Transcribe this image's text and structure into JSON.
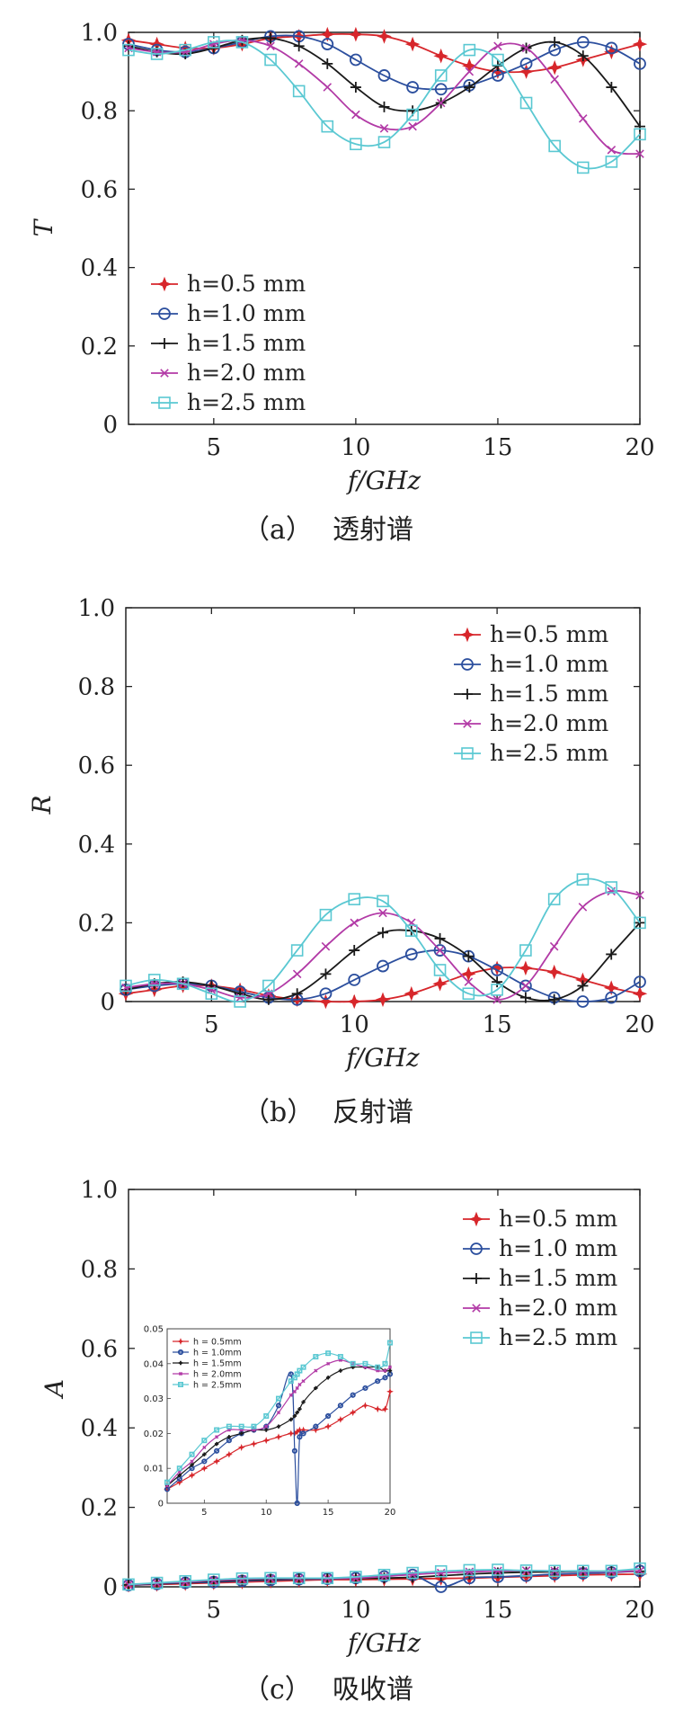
{
  "panels": [
    {
      "id": "a",
      "caption_letter": "（a）",
      "caption_text": "透射谱",
      "legend_position": "bottom-left"
    },
    {
      "id": "b",
      "caption_letter": "（b）",
      "caption_text": "反射谱",
      "legend_position": "top-right"
    },
    {
      "id": "c",
      "caption_letter": "（c）",
      "caption_text": "吸收谱",
      "legend_position": "top-right"
    }
  ],
  "colors": {
    "h05": "#d7262b",
    "h10": "#2c4f9e",
    "h15": "#1a1a1a",
    "h20": "#b23aa6",
    "h25": "#5ac8d2"
  },
  "chart_data": [
    {
      "type": "line",
      "ylabel": "T",
      "xlabel": "f/GHz",
      "xlim": [
        2,
        20
      ],
      "ylim": [
        0,
        1.0
      ],
      "xticks": [
        "5",
        "10",
        "15",
        "20"
      ],
      "yticks": [
        "0",
        "0.2",
        "0.4",
        "0.6",
        "0.8",
        "1.0"
      ],
      "x": [
        2,
        3,
        4,
        5,
        6,
        7,
        8,
        9,
        10,
        11,
        12,
        13,
        14,
        15,
        16,
        17,
        18,
        19,
        20
      ],
      "series": [
        {
          "name": "h=0.5 mm",
          "marker": "star",
          "color_key": "h05",
          "values": [
            0.98,
            0.97,
            0.96,
            0.96,
            0.97,
            0.985,
            0.99,
            0.995,
            0.995,
            0.99,
            0.97,
            0.94,
            0.915,
            0.9,
            0.9,
            0.91,
            0.93,
            0.95,
            0.97
          ]
        },
        {
          "name": "h=1.0 mm",
          "marker": "circle",
          "color_key": "h10",
          "values": [
            0.97,
            0.955,
            0.95,
            0.96,
            0.975,
            0.99,
            0.99,
            0.97,
            0.93,
            0.89,
            0.86,
            0.855,
            0.865,
            0.89,
            0.92,
            0.955,
            0.975,
            0.96,
            0.92
          ]
        },
        {
          "name": "h=1.5 mm",
          "marker": "plus",
          "color_key": "h15",
          "values": [
            0.965,
            0.95,
            0.945,
            0.96,
            0.98,
            0.985,
            0.965,
            0.92,
            0.86,
            0.81,
            0.8,
            0.82,
            0.86,
            0.915,
            0.96,
            0.975,
            0.94,
            0.86,
            0.76
          ]
        },
        {
          "name": "h=2.0 mm",
          "marker": "x",
          "color_key": "h20",
          "values": [
            0.96,
            0.95,
            0.95,
            0.97,
            0.98,
            0.965,
            0.92,
            0.86,
            0.79,
            0.755,
            0.76,
            0.82,
            0.9,
            0.965,
            0.96,
            0.88,
            0.78,
            0.7,
            0.69
          ]
        },
        {
          "name": "h=2.5 mm",
          "marker": "square",
          "color_key": "h25",
          "values": [
            0.955,
            0.945,
            0.955,
            0.975,
            0.975,
            0.93,
            0.85,
            0.76,
            0.715,
            0.72,
            0.79,
            0.89,
            0.955,
            0.93,
            0.82,
            0.71,
            0.655,
            0.67,
            0.74
          ]
        }
      ]
    },
    {
      "type": "line",
      "ylabel": "R",
      "xlabel": "f/GHz",
      "xlim": [
        2,
        20
      ],
      "ylim": [
        0,
        1.0
      ],
      "xticks": [
        "5",
        "10",
        "15",
        "20"
      ],
      "yticks": [
        "0",
        "0.2",
        "0.4",
        "0.6",
        "0.8",
        "1.0"
      ],
      "x": [
        2,
        3,
        4,
        5,
        6,
        7,
        8,
        9,
        10,
        11,
        12,
        13,
        14,
        15,
        16,
        17,
        18,
        19,
        20
      ],
      "series": [
        {
          "name": "h=0.5 mm",
          "marker": "star",
          "color_key": "h05",
          "values": [
            0.02,
            0.03,
            0.04,
            0.04,
            0.03,
            0.015,
            0.005,
            0.0,
            0.0,
            0.005,
            0.02,
            0.045,
            0.07,
            0.085,
            0.085,
            0.075,
            0.055,
            0.035,
            0.02
          ]
        },
        {
          "name": "h=1.0 mm",
          "marker": "circle",
          "color_key": "h10",
          "values": [
            0.03,
            0.04,
            0.045,
            0.04,
            0.025,
            0.01,
            0.005,
            0.02,
            0.055,
            0.09,
            0.12,
            0.13,
            0.115,
            0.08,
            0.04,
            0.01,
            0.0,
            0.01,
            0.05
          ]
        },
        {
          "name": "h=1.5 mm",
          "marker": "plus",
          "color_key": "h15",
          "values": [
            0.03,
            0.045,
            0.05,
            0.04,
            0.02,
            0.005,
            0.02,
            0.07,
            0.13,
            0.175,
            0.18,
            0.16,
            0.115,
            0.05,
            0.01,
            0.005,
            0.04,
            0.12,
            0.2
          ]
        },
        {
          "name": "h=2.0 mm",
          "marker": "x",
          "color_key": "h20",
          "values": [
            0.035,
            0.045,
            0.045,
            0.03,
            0.01,
            0.02,
            0.07,
            0.14,
            0.2,
            0.225,
            0.2,
            0.13,
            0.05,
            0.005,
            0.04,
            0.14,
            0.24,
            0.28,
            0.27
          ]
        },
        {
          "name": "h=2.5 mm",
          "marker": "square",
          "color_key": "h25",
          "values": [
            0.04,
            0.055,
            0.045,
            0.02,
            0.0,
            0.04,
            0.13,
            0.22,
            0.26,
            0.255,
            0.18,
            0.08,
            0.02,
            0.03,
            0.13,
            0.26,
            0.31,
            0.29,
            0.2
          ]
        }
      ]
    },
    {
      "type": "line",
      "ylabel": "A",
      "xlabel": "f/GHz",
      "xlim": [
        2,
        20
      ],
      "ylim": [
        0,
        1.0
      ],
      "xticks": [
        "5",
        "10",
        "15",
        "20"
      ],
      "yticks": [
        "0",
        "0.2",
        "0.4",
        "0.6",
        "0.8",
        "1.0"
      ],
      "x": [
        2,
        3,
        4,
        5,
        6,
        7,
        8,
        9,
        10,
        11,
        12,
        13,
        14,
        15,
        16,
        17,
        18,
        19,
        20
      ],
      "series": [
        {
          "name": "h=0.5 mm",
          "marker": "star",
          "color_key": "h05",
          "values": [
            0.004,
            0.006,
            0.008,
            0.01,
            0.012,
            0.014,
            0.016,
            0.018,
            0.018,
            0.019,
            0.02,
            0.021,
            0.022,
            0.024,
            0.026,
            0.028,
            0.03,
            0.031,
            0.032
          ]
        },
        {
          "name": "h=1.0 mm",
          "marker": "circle",
          "color_key": "h10",
          "values": [
            0.004,
            0.007,
            0.01,
            0.012,
            0.015,
            0.017,
            0.019,
            0.02,
            0.022,
            0.026,
            0.03,
            0.0,
            0.022,
            0.025,
            0.028,
            0.032,
            0.034,
            0.036,
            0.04
          ]
        },
        {
          "name": "h=1.5 mm",
          "marker": "plus",
          "color_key": "h15",
          "values": [
            0.005,
            0.008,
            0.011,
            0.014,
            0.017,
            0.019,
            0.02,
            0.021,
            0.021,
            0.022,
            0.024,
            0.028,
            0.032,
            0.035,
            0.037,
            0.038,
            0.039,
            0.039,
            0.039
          ]
        },
        {
          "name": "h=2.0 mm",
          "marker": "x",
          "color_key": "h20",
          "values": [
            0.005,
            0.009,
            0.012,
            0.016,
            0.019,
            0.021,
            0.021,
            0.021,
            0.022,
            0.026,
            0.031,
            0.035,
            0.038,
            0.04,
            0.041,
            0.04,
            0.039,
            0.038,
            0.04
          ]
        },
        {
          "name": "h=2.5 mm",
          "marker": "square",
          "color_key": "h25",
          "values": [
            0.006,
            0.01,
            0.014,
            0.018,
            0.021,
            0.022,
            0.022,
            0.022,
            0.025,
            0.03,
            0.035,
            0.039,
            0.042,
            0.043,
            0.041,
            0.04,
            0.04,
            0.04,
            0.046
          ]
        }
      ],
      "inset": {
        "xlim": [
          2,
          20
        ],
        "ylim": [
          0,
          0.05
        ],
        "xticks": [
          "5",
          "10",
          "15",
          "20"
        ],
        "yticks": [
          "0",
          "0.01",
          "0.02",
          "0.03",
          "0.04",
          "0.05"
        ],
        "x": [
          2,
          3,
          4,
          5,
          6,
          7,
          8,
          9,
          10,
          11,
          12,
          12.3,
          12.5,
          12.7,
          13,
          14,
          15,
          16,
          17,
          18,
          19,
          19.6,
          20
        ],
        "legend": [
          "h = 0.5mm",
          "h = 1.0mm",
          "h = 1.5mm",
          "h = 2.0mm",
          "h = 2.5mm"
        ],
        "series": [
          {
            "name": "h = 0.5mm",
            "color_key": "h05",
            "values": [
              0.004,
              0.006,
              0.008,
              0.01,
              0.012,
              0.014,
              0.016,
              0.017,
              0.018,
              0.019,
              0.02,
              0.02,
              0.0205,
              0.021,
              0.021,
              0.021,
              0.022,
              0.024,
              0.026,
              0.028,
              0.027,
              0.027,
              0.032
            ]
          },
          {
            "name": "h = 1.0mm",
            "color_key": "h10",
            "values": [
              0.004,
              0.007,
              0.01,
              0.012,
              0.015,
              0.018,
              0.02,
              0.021,
              0.022,
              0.028,
              0.037,
              0.015,
              0.0,
              0.019,
              0.02,
              0.022,
              0.025,
              0.028,
              0.031,
              0.033,
              0.035,
              0.036,
              0.037
            ]
          },
          {
            "name": "h = 1.5mm",
            "color_key": "h15",
            "values": [
              0.005,
              0.008,
              0.011,
              0.014,
              0.017,
              0.019,
              0.02,
              0.021,
              0.021,
              0.022,
              0.024,
              0.025,
              0.026,
              0.027,
              0.029,
              0.033,
              0.036,
              0.038,
              0.039,
              0.039,
              0.039,
              0.038,
              0.038
            ]
          },
          {
            "name": "h = 2.0mm",
            "color_key": "h20",
            "values": [
              0.005,
              0.009,
              0.012,
              0.016,
              0.019,
              0.021,
              0.021,
              0.021,
              0.022,
              0.026,
              0.031,
              0.032,
              0.033,
              0.034,
              0.035,
              0.038,
              0.04,
              0.041,
              0.04,
              0.039,
              0.038,
              0.038,
              0.039
            ]
          },
          {
            "name": "h = 2.5mm",
            "color_key": "h25",
            "values": [
              0.006,
              0.01,
              0.014,
              0.018,
              0.021,
              0.022,
              0.022,
              0.022,
              0.025,
              0.03,
              0.035,
              0.036,
              0.037,
              0.038,
              0.039,
              0.042,
              0.043,
              0.042,
              0.04,
              0.04,
              0.039,
              0.04,
              0.046
            ]
          }
        ]
      }
    }
  ]
}
